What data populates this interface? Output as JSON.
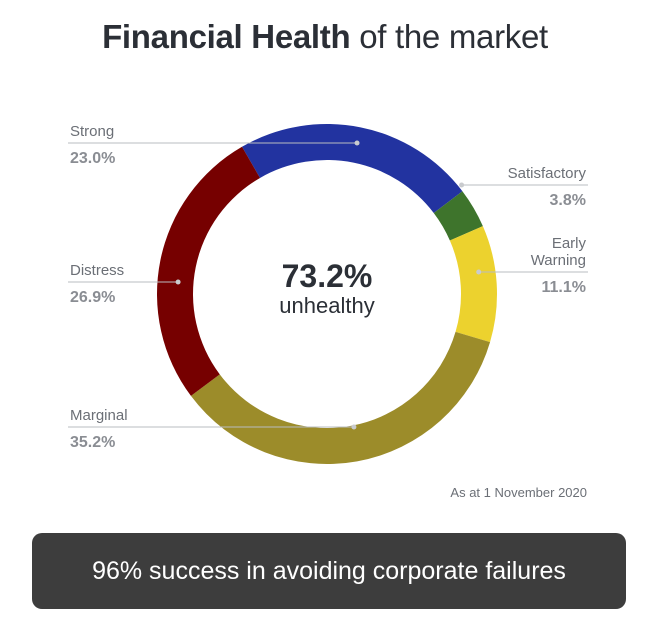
{
  "title": {
    "bold": "Financial Health",
    "rest": " of the market"
  },
  "chart_data": {
    "type": "pie",
    "variant": "donut",
    "unit": "%",
    "slices": [
      {
        "label": "Strong",
        "value": 23.0,
        "display": "23.0%",
        "color": "#2233a0"
      },
      {
        "label": "Satisfactory",
        "value": 3.8,
        "display": "3.8%",
        "color": "#3e742c"
      },
      {
        "label": "Early Warning",
        "value": 11.1,
        "display": "11.1%",
        "color": "#ecd22e"
      },
      {
        "label": "Marginal",
        "value": 35.2,
        "display": "35.2%",
        "color": "#9c8c2a"
      },
      {
        "label": "Distress",
        "value": 26.9,
        "display": "26.9%",
        "color": "#760000"
      }
    ],
    "center": {
      "value": "73.2%",
      "caption": "unhealthy"
    }
  },
  "note": "As at 1 November 2020",
  "banner": "96% success in avoiding corporate failures"
}
